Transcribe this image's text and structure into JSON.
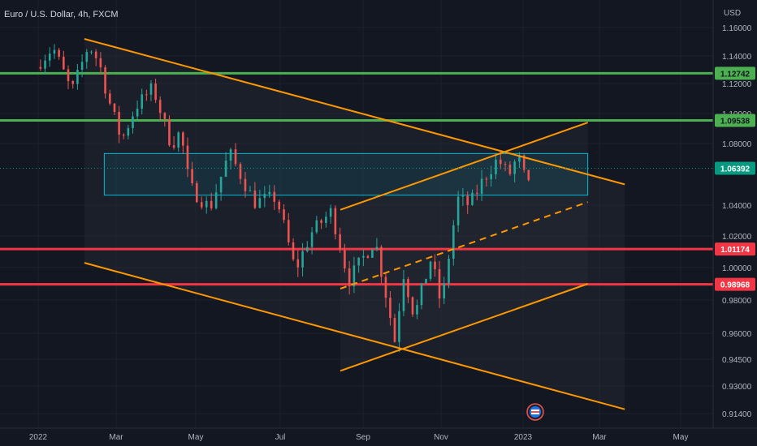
{
  "legend": {
    "title": "Euro / U.S. Dollar, 4h, FXCM"
  },
  "axis": {
    "currency": "USD"
  },
  "colors": {
    "background": "#131722",
    "up": "#26a69a",
    "down": "#ef5350",
    "support_green": "#4caf50",
    "resistance_red": "#f23645",
    "trend_orange": "#ff9800",
    "box_cyan": "#00bcd4",
    "last_price_badge": "#089981"
  },
  "chart_data": {
    "type": "candlestick",
    "x_ticks": [
      "2022",
      "Mar",
      "May",
      "Jul",
      "Sep",
      "Nov",
      "2023",
      "Mar",
      "May"
    ],
    "y_ticks": [
      "1.16000",
      "1.14000",
      "1.12000",
      "1.10000",
      "1.08000",
      "1.04000",
      "1.02000",
      "1.00000",
      "0.98000",
      "0.96000",
      "0.94500",
      "0.93000",
      "0.91400"
    ],
    "ylim": [
      0.909,
      1.168
    ],
    "price_badges": [
      {
        "label": "1.12742",
        "value": 1.12742,
        "kind": "green"
      },
      {
        "label": "1.09538",
        "value": 1.09538,
        "kind": "green"
      },
      {
        "label": "1.06392",
        "value": 1.06392,
        "kind": "last"
      },
      {
        "label": "1.01174",
        "value": 1.01174,
        "kind": "red"
      },
      {
        "label": "0.98968",
        "value": 0.98968,
        "kind": "red"
      }
    ],
    "horizontal_levels": [
      {
        "value": 1.12742,
        "kind": "green"
      },
      {
        "value": 1.09538,
        "kind": "green"
      },
      {
        "value": 1.01174,
        "kind": "red"
      },
      {
        "value": 0.98968,
        "kind": "red"
      }
    ],
    "zone": {
      "start": "2022-02-20",
      "end": "2023-02-20",
      "top": 1.0735,
      "bottom": 1.0465
    },
    "trendlines": [
      {
        "from": [
          "2022-02-05",
          1.152
        ],
        "to": [
          "2023-03-20",
          1.0535
        ],
        "style": "solid"
      },
      {
        "from": [
          "2022-02-05",
          1.003
        ],
        "to": [
          "2023-03-20",
          0.9165
        ],
        "style": "solid"
      },
      {
        "from": [
          "2022-08-15",
          1.037
        ],
        "to": [
          "2023-02-20",
          1.094
        ],
        "style": "solid"
      },
      {
        "from": [
          "2022-08-15",
          0.9385
        ],
        "to": [
          "2023-02-20",
          0.99
        ],
        "style": "solid"
      },
      {
        "from": [
          "2022-08-15",
          0.987
        ],
        "to": [
          "2023-02-20",
          1.042
        ],
        "style": "dashed"
      }
    ],
    "price_path": [
      [
        "2022-01-01",
        1.132
      ],
      [
        "2022-01-14",
        1.146
      ],
      [
        "2022-01-20",
        1.133
      ],
      [
        "2022-01-28",
        1.114
      ],
      [
        "2022-02-10",
        1.148
      ],
      [
        "2022-02-18",
        1.135
      ],
      [
        "2022-02-24",
        1.112
      ],
      [
        "2022-03-07",
        1.082
      ],
      [
        "2022-03-18",
        1.105
      ],
      [
        "2022-03-31",
        1.117
      ],
      [
        "2022-04-14",
        1.079
      ],
      [
        "2022-04-21",
        1.088
      ],
      [
        "2022-04-28",
        1.052
      ],
      [
        "2022-05-13",
        1.038
      ],
      [
        "2022-05-27",
        1.074
      ],
      [
        "2022-06-14",
        1.042
      ],
      [
        "2022-06-30",
        1.045
      ],
      [
        "2022-07-14",
        0.998
      ],
      [
        "2022-07-26",
        1.022
      ],
      [
        "2022-08-10",
        1.036
      ],
      [
        "2022-08-23",
        0.992
      ],
      [
        "2022-09-12",
        1.018
      ],
      [
        "2022-09-28",
        0.954
      ],
      [
        "2022-10-04",
        0.998
      ],
      [
        "2022-10-13",
        0.97
      ],
      [
        "2022-10-26",
        1.006
      ],
      [
        "2022-11-03",
        0.976
      ],
      [
        "2022-11-15",
        1.044
      ],
      [
        "2022-11-24",
        1.04
      ],
      [
        "2022-12-05",
        1.058
      ],
      [
        "2022-12-15",
        1.07
      ],
      [
        "2022-12-23",
        1.059
      ],
      [
        "2022-12-30",
        1.072
      ],
      [
        "2023-01-06",
        1.052
      ]
    ]
  }
}
